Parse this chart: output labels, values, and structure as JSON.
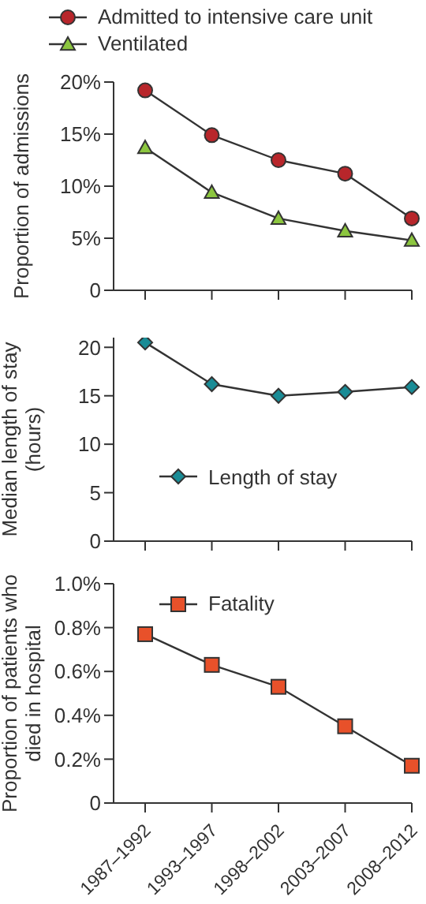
{
  "chart_data": [
    {
      "type": "line",
      "ylabel": "Proportion of admissions",
      "categories": [
        null,
        null,
        null,
        null,
        null
      ],
      "series": [
        {
          "name": "Admitted to intensive care unit",
          "color": "#b8262b",
          "marker": "circle",
          "values": [
            19.2,
            14.9,
            12.5,
            11.2,
            6.9
          ]
        },
        {
          "name": "Ventilated",
          "color": "#8cc63f",
          "marker": "triangle",
          "values": [
            13.7,
            9.4,
            6.9,
            5.7,
            4.8
          ]
        }
      ],
      "ylim": [
        0,
        20
      ],
      "yticks": [
        0,
        {
          "value": 5,
          "label": "5%"
        },
        {
          "value": 10,
          "label": "10%"
        },
        {
          "value": 15,
          "label": "15%"
        },
        {
          "value": 20,
          "label": "20%"
        }
      ],
      "grid": false,
      "legend": "top left"
    },
    {
      "type": "line",
      "ylabel": "Median length of stay (hours)",
      "categories": [
        null,
        null,
        null,
        null,
        null
      ],
      "series": [
        {
          "name": "Length of stay",
          "color": "#1a8c96",
          "marker": "diamond",
          "values": [
            20.5,
            16.2,
            15.0,
            15.4,
            15.9
          ]
        }
      ],
      "ylim": [
        0,
        21
      ],
      "yticks": [
        0,
        5,
        10,
        15,
        20
      ],
      "grid": false,
      "legend": "bottom"
    },
    {
      "type": "line",
      "ylabel": "Proportion of patients who died in hospital",
      "categories": [
        "1987–1992",
        "1993–1997",
        "1998–2002",
        "2003–2007",
        "2008–2012"
      ],
      "series": [
        {
          "name": "Fatality",
          "color": "#e8512a",
          "marker": "square",
          "values": [
            0.77,
            0.63,
            0.53,
            0.35,
            0.17
          ]
        }
      ],
      "ylim": [
        0,
        1.0
      ],
      "yticks": [
        0,
        {
          "value": 0.2,
          "label": "0.2%"
        },
        {
          "value": 0.4,
          "label": "0.4%"
        },
        {
          "value": 0.6,
          "label": "0.6%"
        },
        {
          "value": 0.8,
          "label": "0.8%"
        },
        {
          "value": 1.0,
          "label": "1.0%"
        }
      ],
      "grid": false,
      "legend": "top"
    }
  ]
}
